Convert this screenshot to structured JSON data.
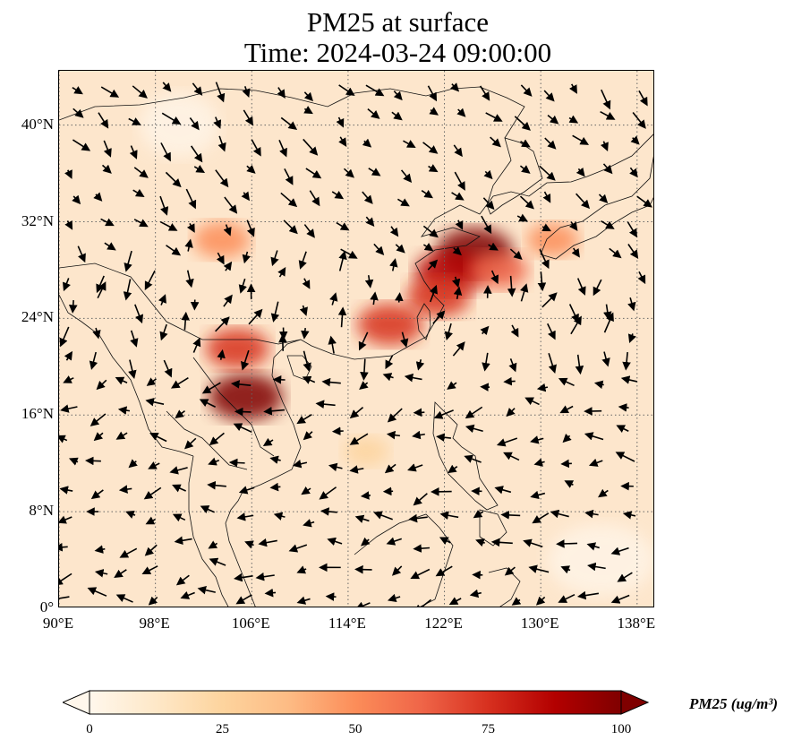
{
  "title": {
    "line1": "PM25 at surface",
    "line2": "Time: 2024-03-24 09:00:00"
  },
  "map": {
    "projection": "PlateCarree",
    "lon_range": [
      90,
      139.5
    ],
    "lat_range": [
      0,
      44.5
    ],
    "lat_ticks": [
      {
        "value": 0,
        "label": "0°"
      },
      {
        "value": 8,
        "label": "8°N"
      },
      {
        "value": 16,
        "label": "16°N"
      },
      {
        "value": 24,
        "label": "24°N"
      },
      {
        "value": 32,
        "label": "32°N"
      },
      {
        "value": 40,
        "label": "40°N"
      }
    ],
    "lon_ticks": [
      {
        "value": 90,
        "label": "90°E"
      },
      {
        "value": 98,
        "label": "98°E"
      },
      {
        "value": 106,
        "label": "106°E"
      },
      {
        "value": 114,
        "label": "114°E"
      },
      {
        "value": 122,
        "label": "122°E"
      },
      {
        "value": 130,
        "label": "130°E"
      },
      {
        "value": 138,
        "label": "138°E"
      }
    ],
    "gridlines": "dotted",
    "field": "PM25",
    "hotspots": [
      {
        "lon": 124.5,
        "lat": 29.5,
        "value": 100
      },
      {
        "lon": 122.5,
        "lat": 27.8,
        "value": 85
      },
      {
        "lon": 121.5,
        "lat": 25.8,
        "value": 70
      },
      {
        "lon": 117.5,
        "lat": 23.5,
        "value": 75
      },
      {
        "lon": 105.5,
        "lat": 17.5,
        "value": 95
      },
      {
        "lon": 104.8,
        "lat": 21.5,
        "value": 70
      },
      {
        "lon": 126.5,
        "lat": 28.0,
        "value": 60
      },
      {
        "lon": 131.0,
        "lat": 30.5,
        "value": 45
      },
      {
        "lon": 103.5,
        "lat": 30.5,
        "value": 55
      },
      {
        "lon": 115.5,
        "lat": 13.0,
        "value": 30
      }
    ],
    "wind_vectors": "arrows showing surface wind direction"
  },
  "colorbar": {
    "label": "PM25 (ug/m³)",
    "min": 0,
    "max": 100,
    "extend": "both",
    "colormap": "OrRd",
    "colors": [
      "#fff7ec",
      "#fee8c8",
      "#fdd49e",
      "#fdbb84",
      "#fc8d59",
      "#ef6548",
      "#d7301f",
      "#b30000",
      "#7f0000"
    ],
    "ticks": [
      {
        "value": 0,
        "label": "0"
      },
      {
        "value": 25,
        "label": "25"
      },
      {
        "value": 50,
        "label": "50"
      },
      {
        "value": 75,
        "label": "75"
      },
      {
        "value": 100,
        "label": "100"
      }
    ]
  }
}
